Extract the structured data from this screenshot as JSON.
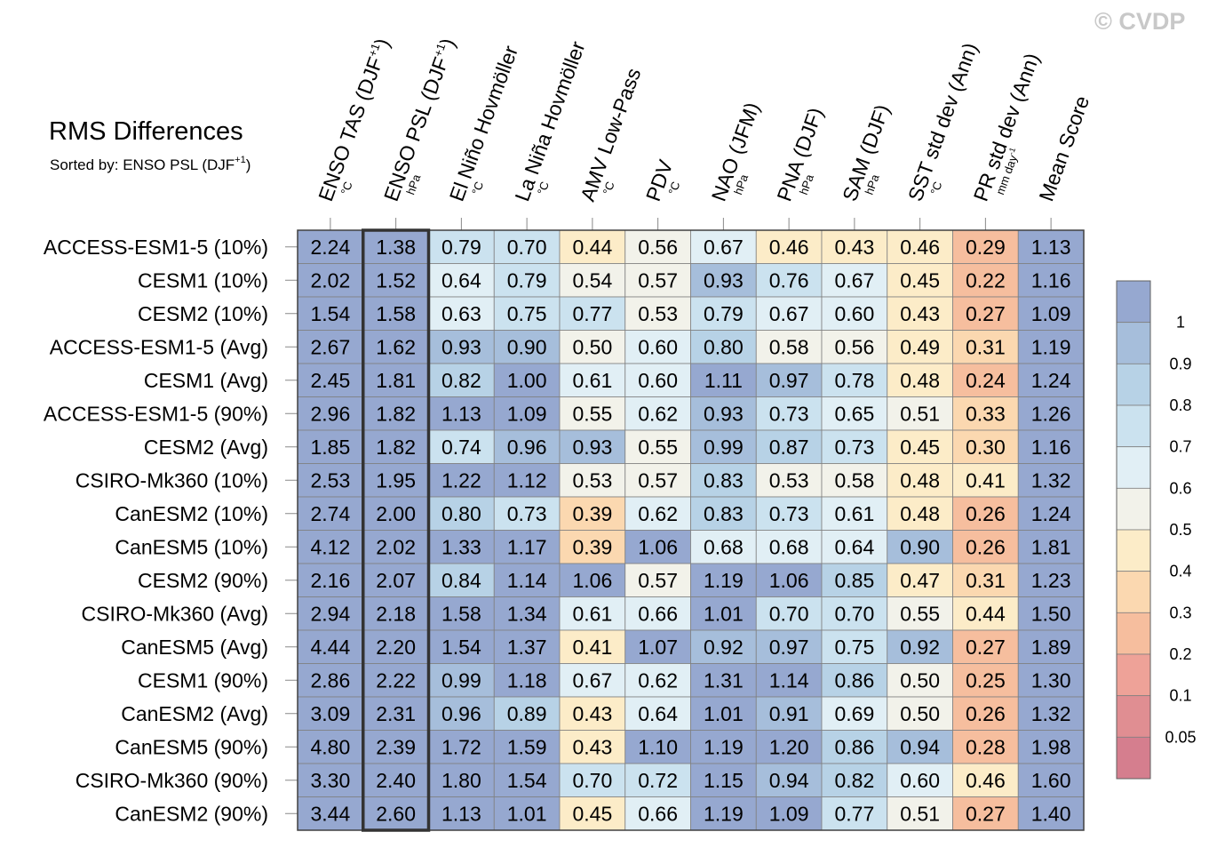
{
  "copyright": "© CVDP",
  "title": "RMS Differences",
  "subtitle": {
    "text": "Sorted by: ENSO PSL (DJF",
    "sup": "+1",
    "close": ")"
  },
  "chart_data": {
    "type": "heatmap",
    "title": "RMS Differences",
    "sorted_by": "ENSO PSL (DJF+1)",
    "highlight_column": 1,
    "columns": [
      {
        "name": "ENSO TAS (DJF",
        "sup": "+1",
        "close": ")",
        "unit": "°C"
      },
      {
        "name": "ENSO PSL (DJF",
        "sup": "+1",
        "close": ")",
        "unit": "hPa"
      },
      {
        "name": "El Niño Hovmöller",
        "unit": "°C"
      },
      {
        "name": "La Niña Hovmöller",
        "unit": "°C"
      },
      {
        "name": "AMV Low-Pass",
        "unit": "°C"
      },
      {
        "name": "PDV",
        "unit": "°C"
      },
      {
        "name": "NAO (JFM)",
        "unit": "hPa"
      },
      {
        "name": "PNA (DJF)",
        "unit": "hPa"
      },
      {
        "name": "SAM (DJF)",
        "unit": "hPa"
      },
      {
        "name": "SST std dev (Ann)",
        "unit": "°C"
      },
      {
        "name": "PR std dev (Ann)",
        "unit": "mm day",
        "unit_sup": "-1"
      },
      {
        "name": "Mean Score",
        "unit": ""
      }
    ],
    "rows": [
      "ACCESS-ESM1-5 (10%)",
      "CESM1 (10%)",
      "CESM2 (10%)",
      "ACCESS-ESM1-5 (Avg)",
      "CESM1 (Avg)",
      "ACCESS-ESM1-5 (90%)",
      "CESM2 (Avg)",
      "CSIRO-Mk360 (10%)",
      "CanESM2 (10%)",
      "CanESM5 (10%)",
      "CESM2 (90%)",
      "CSIRO-Mk360 (Avg)",
      "CanESM5 (Avg)",
      "CESM1 (90%)",
      "CanESM2 (Avg)",
      "CanESM5 (90%)",
      "CSIRO-Mk360 (90%)",
      "CanESM2 (90%)"
    ],
    "values": [
      [
        "2.24",
        "1.38",
        "0.79",
        "0.70",
        "0.44",
        "0.56",
        "0.67",
        "0.46",
        "0.43",
        "0.46",
        "0.29",
        "1.13"
      ],
      [
        "2.02",
        "1.52",
        "0.64",
        "0.79",
        "0.54",
        "0.57",
        "0.93",
        "0.76",
        "0.67",
        "0.45",
        "0.22",
        "1.16"
      ],
      [
        "1.54",
        "1.58",
        "0.63",
        "0.75",
        "0.77",
        "0.53",
        "0.79",
        "0.67",
        "0.60",
        "0.43",
        "0.27",
        "1.09"
      ],
      [
        "2.67",
        "1.62",
        "0.93",
        "0.90",
        "0.50",
        "0.60",
        "0.80",
        "0.58",
        "0.56",
        "0.49",
        "0.31",
        "1.19"
      ],
      [
        "2.45",
        "1.81",
        "0.82",
        "1.00",
        "0.61",
        "0.60",
        "1.11",
        "0.97",
        "0.78",
        "0.48",
        "0.24",
        "1.24"
      ],
      [
        "2.96",
        "1.82",
        "1.13",
        "1.09",
        "0.55",
        "0.62",
        "0.93",
        "0.73",
        "0.65",
        "0.51",
        "0.33",
        "1.26"
      ],
      [
        "1.85",
        "1.82",
        "0.74",
        "0.96",
        "0.93",
        "0.55",
        "0.99",
        "0.87",
        "0.73",
        "0.45",
        "0.30",
        "1.16"
      ],
      [
        "2.53",
        "1.95",
        "1.22",
        "1.12",
        "0.53",
        "0.57",
        "0.83",
        "0.53",
        "0.58",
        "0.48",
        "0.41",
        "1.32"
      ],
      [
        "2.74",
        "2.00",
        "0.80",
        "0.73",
        "0.39",
        "0.62",
        "0.83",
        "0.73",
        "0.61",
        "0.48",
        "0.26",
        "1.24"
      ],
      [
        "4.12",
        "2.02",
        "1.33",
        "1.17",
        "0.39",
        "1.06",
        "0.68",
        "0.68",
        "0.64",
        "0.90",
        "0.26",
        "1.81"
      ],
      [
        "2.16",
        "2.07",
        "0.84",
        "1.14",
        "1.06",
        "0.57",
        "1.19",
        "1.06",
        "0.85",
        "0.47",
        "0.31",
        "1.23"
      ],
      [
        "2.94",
        "2.18",
        "1.58",
        "1.34",
        "0.61",
        "0.66",
        "1.01",
        "0.70",
        "0.70",
        "0.55",
        "0.44",
        "1.50"
      ],
      [
        "4.44",
        "2.20",
        "1.54",
        "1.37",
        "0.41",
        "1.07",
        "0.92",
        "0.97",
        "0.75",
        "0.92",
        "0.27",
        "1.89"
      ],
      [
        "2.86",
        "2.22",
        "0.99",
        "1.18",
        "0.67",
        "0.62",
        "1.31",
        "1.14",
        "0.86",
        "0.50",
        "0.25",
        "1.30"
      ],
      [
        "3.09",
        "2.31",
        "0.96",
        "0.89",
        "0.43",
        "0.64",
        "1.01",
        "0.91",
        "0.69",
        "0.50",
        "0.26",
        "1.32"
      ],
      [
        "4.80",
        "2.39",
        "1.72",
        "1.59",
        "0.43",
        "1.10",
        "1.19",
        "1.20",
        "0.86",
        "0.94",
        "0.28",
        "1.98"
      ],
      [
        "3.30",
        "2.40",
        "1.80",
        "1.54",
        "0.70",
        "0.72",
        "1.15",
        "0.94",
        "0.82",
        "0.60",
        "0.46",
        "1.60"
      ],
      [
        "3.44",
        "2.60",
        "1.13",
        "1.01",
        "0.45",
        "0.66",
        "1.19",
        "1.09",
        "0.77",
        "0.51",
        "0.27",
        "1.40"
      ]
    ],
    "colorbar": {
      "labels": [
        "1",
        "0.9",
        "0.8",
        "0.7",
        "0.6",
        "0.5",
        "0.4",
        "0.3",
        "0.2",
        "0.1",
        "0.05"
      ],
      "bins": [
        {
          "min": 1.0,
          "color": "#96a8d0"
        },
        {
          "min": 0.9,
          "color": "#a6bedb"
        },
        {
          "min": 0.8,
          "color": "#b7d2e6"
        },
        {
          "min": 0.7,
          "color": "#cbe2ef"
        },
        {
          "min": 0.6,
          "color": "#e1eff5"
        },
        {
          "min": 0.5,
          "color": "#f2f2ea"
        },
        {
          "min": 0.4,
          "color": "#fcecc8"
        },
        {
          "min": 0.3,
          "color": "#fbd8b0"
        },
        {
          "min": 0.2,
          "color": "#f6be9e"
        },
        {
          "min": 0.1,
          "color": "#eea298"
        },
        {
          "min": 0.05,
          "color": "#e08e92"
        },
        {
          "min": 0.0,
          "color": "#d57e8e"
        }
      ]
    }
  }
}
